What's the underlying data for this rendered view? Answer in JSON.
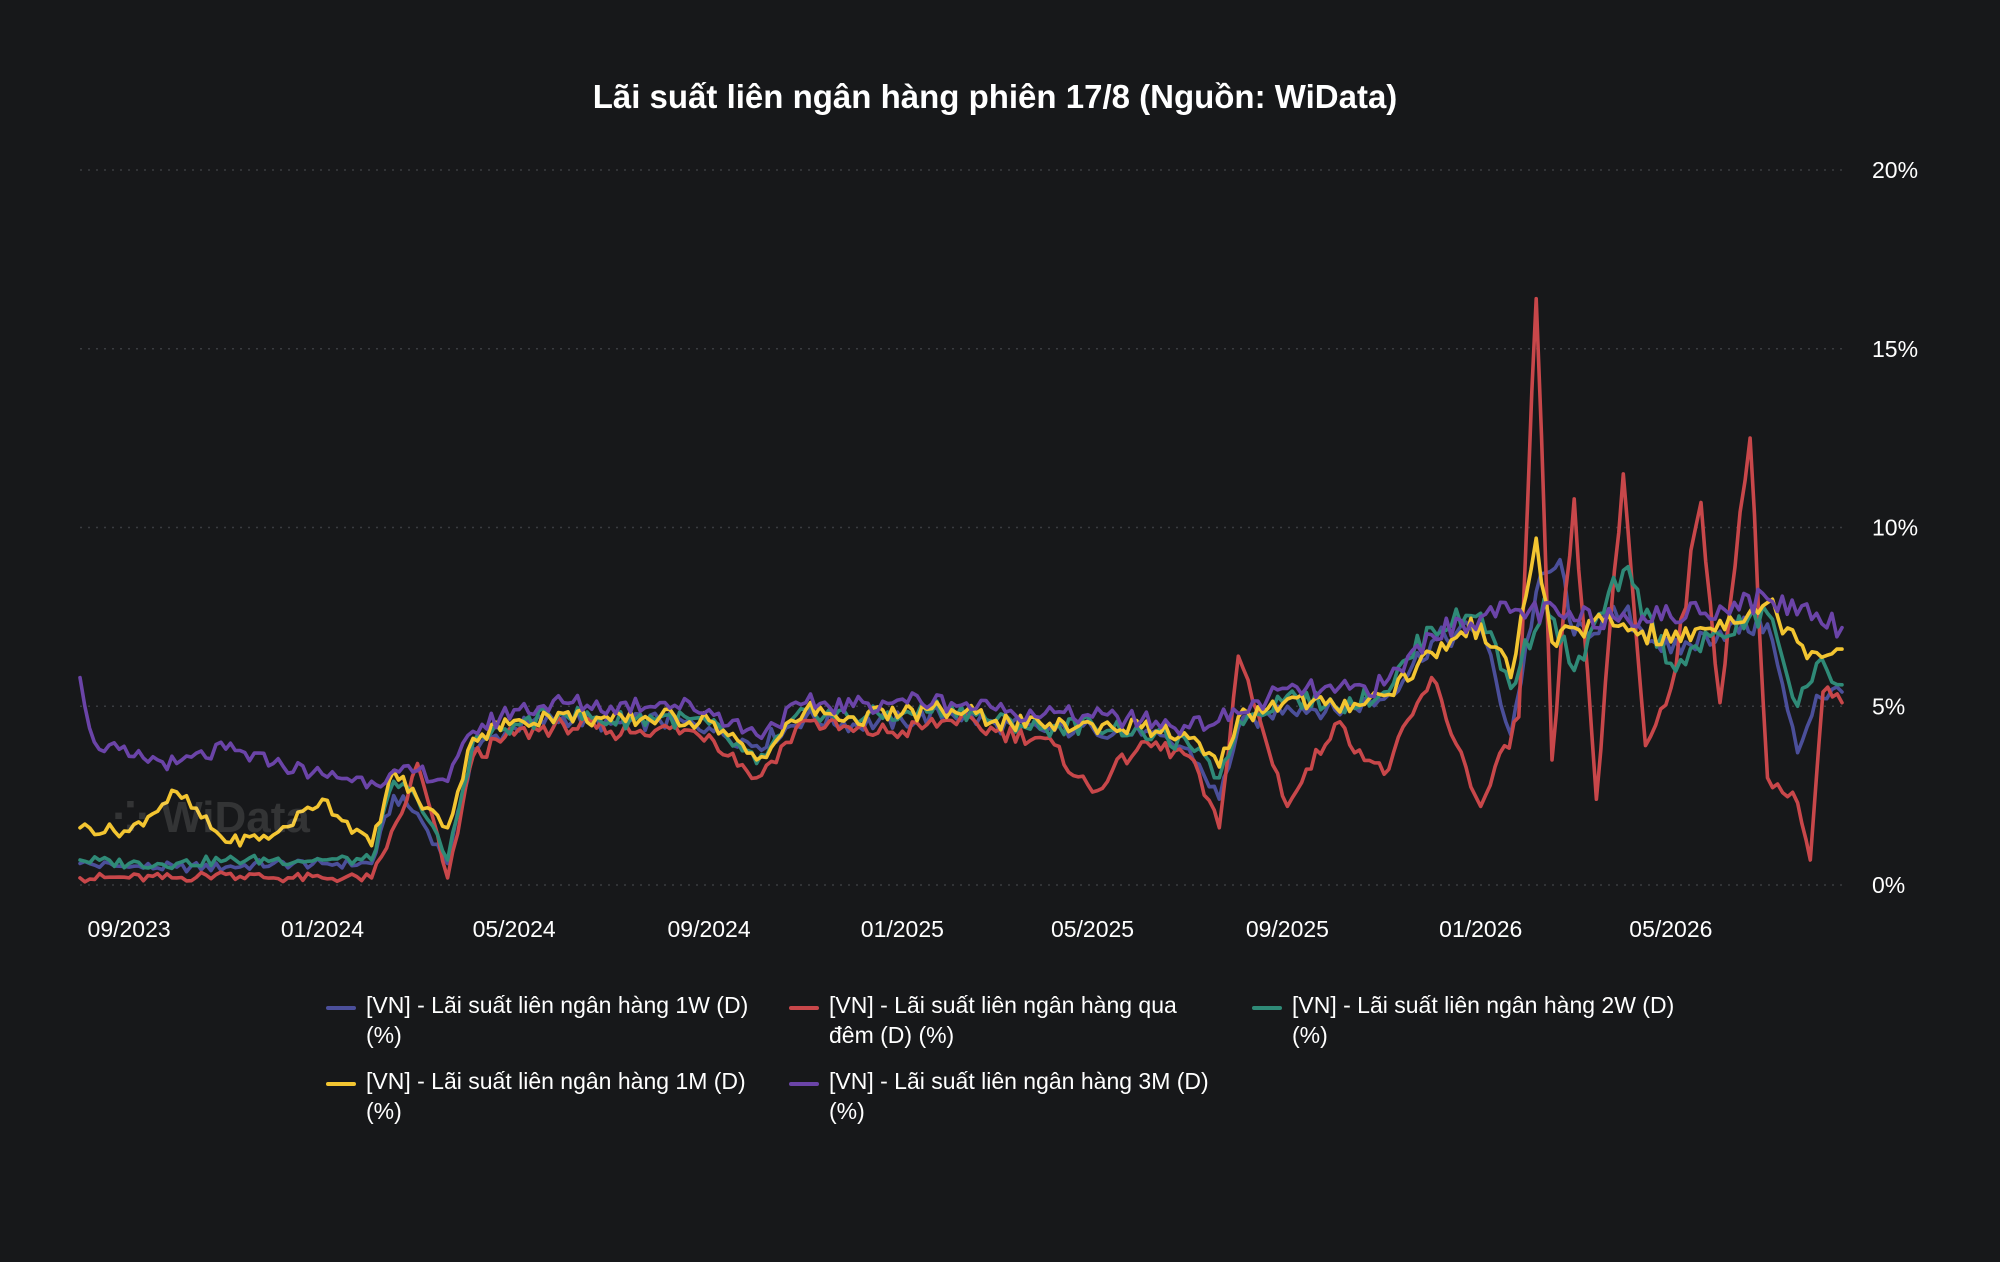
{
  "chart_data": {
    "type": "line",
    "title": "Lãi suất liên ngân hàng phiên 17/8 (Nguồn: WiData)",
    "xlabel": "",
    "ylabel": "",
    "ylim": [
      0,
      20
    ],
    "y_ticks": [
      "0%",
      "5%",
      "10%",
      "15%",
      "20%"
    ],
    "x_ticks": [
      "09/2023",
      "01/2024",
      "05/2024",
      "09/2024",
      "01/2025",
      "05/2025",
      "09/2025",
      "01/2026",
      "05/2026"
    ],
    "x_range": [
      "2023-08-01",
      "2026-08-17"
    ],
    "grid": true,
    "legend_position": "bottom",
    "series": [
      {
        "name": "[VN] - Lãi suất liên ngân hàng 1W (D) (%)",
        "color": "#4b4f9a",
        "points": [
          [
            "2023-08-01",
            0.6
          ],
          [
            "2023-09-01",
            0.5
          ],
          [
            "2023-10-01",
            0.5
          ],
          [
            "2023-11-01",
            0.5
          ],
          [
            "2023-12-01",
            0.6
          ],
          [
            "2024-01-01",
            0.6
          ],
          [
            "2024-02-01",
            0.6
          ],
          [
            "2024-02-15",
            2.5
          ],
          [
            "2024-03-01",
            2.0
          ],
          [
            "2024-03-20",
            0.6
          ],
          [
            "2024-04-05",
            3.8
          ],
          [
            "2024-05-01",
            4.4
          ],
          [
            "2024-06-01",
            4.7
          ],
          [
            "2024-07-01",
            4.5
          ],
          [
            "2024-08-01",
            4.6
          ],
          [
            "2024-09-01",
            4.4
          ],
          [
            "2024-10-01",
            3.9
          ],
          [
            "2024-11-01",
            4.7
          ],
          [
            "2024-12-01",
            4.5
          ],
          [
            "2025-01-01",
            4.6
          ],
          [
            "2025-02-01",
            4.8
          ],
          [
            "2025-03-01",
            4.5
          ],
          [
            "2025-04-01",
            4.3
          ],
          [
            "2025-05-01",
            4.4
          ],
          [
            "2025-06-01",
            4.2
          ],
          [
            "2025-07-01",
            3.8
          ],
          [
            "2025-07-20",
            2.4
          ],
          [
            "2025-08-01",
            4.4
          ],
          [
            "2025-09-01",
            5.0
          ],
          [
            "2025-10-01",
            4.9
          ],
          [
            "2025-11-01",
            5.2
          ],
          [
            "2025-12-01",
            6.8
          ],
          [
            "2026-01-01",
            7.2
          ],
          [
            "2026-01-20",
            4.2
          ],
          [
            "2026-02-05",
            8.2
          ],
          [
            "2026-02-20",
            9.1
          ],
          [
            "2026-03-01",
            7.0
          ],
          [
            "2026-04-01",
            7.6
          ],
          [
            "2026-05-01",
            6.5
          ],
          [
            "2026-06-01",
            7.1
          ],
          [
            "2026-07-01",
            7.3
          ],
          [
            "2026-07-20",
            3.7
          ],
          [
            "2026-08-01",
            5.3
          ],
          [
            "2026-08-17",
            5.4
          ]
        ]
      },
      {
        "name": "[VN] - Lãi suất liên ngân hàng qua đêm (D) (%)",
        "color": "#c8474a",
        "points": [
          [
            "2023-08-01",
            0.2
          ],
          [
            "2023-09-01",
            0.2
          ],
          [
            "2023-10-01",
            0.2
          ],
          [
            "2023-11-01",
            0.3
          ],
          [
            "2023-12-01",
            0.2
          ],
          [
            "2024-01-01",
            0.2
          ],
          [
            "2024-02-01",
            0.2
          ],
          [
            "2024-02-20",
            2.0
          ],
          [
            "2024-03-01",
            3.4
          ],
          [
            "2024-03-20",
            0.2
          ],
          [
            "2024-04-05",
            3.6
          ],
          [
            "2024-05-01",
            4.2
          ],
          [
            "2024-06-01",
            4.5
          ],
          [
            "2024-07-01",
            4.3
          ],
          [
            "2024-08-01",
            4.4
          ],
          [
            "2024-09-01",
            4.2
          ],
          [
            "2024-10-01",
            3.0
          ],
          [
            "2024-11-01",
            4.6
          ],
          [
            "2024-12-01",
            4.3
          ],
          [
            "2025-01-01",
            4.3
          ],
          [
            "2025-02-01",
            4.6
          ],
          [
            "2025-03-01",
            4.3
          ],
          [
            "2025-04-01",
            4.1
          ],
          [
            "2025-05-01",
            2.6
          ],
          [
            "2025-06-01",
            4.0
          ],
          [
            "2025-07-01",
            3.6
          ],
          [
            "2025-07-20",
            1.6
          ],
          [
            "2025-08-01",
            6.4
          ],
          [
            "2025-09-01",
            2.2
          ],
          [
            "2025-10-01",
            4.5
          ],
          [
            "2025-11-01",
            3.1
          ],
          [
            "2025-12-01",
            5.8
          ],
          [
            "2026-01-01",
            2.2
          ],
          [
            "2026-01-25",
            4.7
          ],
          [
            "2026-02-05",
            16.4
          ],
          [
            "2026-02-15",
            3.5
          ],
          [
            "2026-03-01",
            10.8
          ],
          [
            "2026-03-15",
            2.4
          ],
          [
            "2026-04-01",
            11.5
          ],
          [
            "2026-04-15",
            3.9
          ],
          [
            "2026-05-01",
            5.5
          ],
          [
            "2026-05-20",
            10.7
          ],
          [
            "2026-06-01",
            5.1
          ],
          [
            "2026-06-20",
            12.5
          ],
          [
            "2026-07-01",
            3.0
          ],
          [
            "2026-07-20",
            2.3
          ],
          [
            "2026-07-28",
            0.7
          ],
          [
            "2026-08-05",
            5.4
          ],
          [
            "2026-08-17",
            5.1
          ]
        ]
      },
      {
        "name": "[VN] - Lãi suất liên ngân hàng 2W (D) (%)",
        "color": "#2f8a77",
        "points": [
          [
            "2023-08-01",
            0.7
          ],
          [
            "2023-09-01",
            0.6
          ],
          [
            "2023-10-01",
            0.6
          ],
          [
            "2023-11-01",
            0.7
          ],
          [
            "2023-12-01",
            0.7
          ],
          [
            "2024-01-01",
            0.7
          ],
          [
            "2024-02-01",
            0.7
          ],
          [
            "2024-02-15",
            2.9
          ],
          [
            "2024-03-01",
            2.4
          ],
          [
            "2024-03-20",
            0.7
          ],
          [
            "2024-04-05",
            4.0
          ],
          [
            "2024-05-01",
            4.5
          ],
          [
            "2024-06-01",
            4.8
          ],
          [
            "2024-07-01",
            4.6
          ],
          [
            "2024-08-01",
            4.7
          ],
          [
            "2024-09-01",
            4.5
          ],
          [
            "2024-10-01",
            3.4
          ],
          [
            "2024-11-01",
            4.9
          ],
          [
            "2024-12-01",
            4.7
          ],
          [
            "2025-01-01",
            4.8
          ],
          [
            "2025-02-01",
            5.0
          ],
          [
            "2025-03-01",
            4.6
          ],
          [
            "2025-04-01",
            4.4
          ],
          [
            "2025-05-01",
            4.5
          ],
          [
            "2025-06-01",
            4.3
          ],
          [
            "2025-07-01",
            3.9
          ],
          [
            "2025-07-20",
            3.0
          ],
          [
            "2025-08-01",
            4.6
          ],
          [
            "2025-09-01",
            5.3
          ],
          [
            "2025-10-01",
            5.0
          ],
          [
            "2025-11-01",
            5.4
          ],
          [
            "2025-12-01",
            7.2
          ],
          [
            "2026-01-01",
            7.6
          ],
          [
            "2026-01-20",
            5.5
          ],
          [
            "2026-02-10",
            8.0
          ],
          [
            "2026-03-01",
            6.0
          ],
          [
            "2026-04-01",
            8.8
          ],
          [
            "2026-05-01",
            6.2
          ],
          [
            "2026-06-01",
            7.0
          ],
          [
            "2026-07-01",
            7.6
          ],
          [
            "2026-07-20",
            5.0
          ],
          [
            "2026-08-01",
            6.2
          ],
          [
            "2026-08-17",
            5.6
          ]
        ]
      },
      {
        "name": "[VN] - Lãi suất liên ngân hàng 1M (D) (%)",
        "color": "#f3c531",
        "points": [
          [
            "2023-08-01",
            1.6
          ],
          [
            "2023-09-01",
            1.5
          ],
          [
            "2023-10-01",
            2.6
          ],
          [
            "2023-11-01",
            1.2
          ],
          [
            "2023-12-01",
            1.4
          ],
          [
            "2024-01-01",
            2.4
          ],
          [
            "2024-02-01",
            1.1
          ],
          [
            "2024-02-15",
            3.2
          ],
          [
            "2024-03-01",
            2.4
          ],
          [
            "2024-03-20",
            1.6
          ],
          [
            "2024-04-05",
            4.1
          ],
          [
            "2024-05-01",
            4.6
          ],
          [
            "2024-06-01",
            4.8
          ],
          [
            "2024-07-01",
            4.6
          ],
          [
            "2024-08-01",
            4.7
          ],
          [
            "2024-09-01",
            4.6
          ],
          [
            "2024-10-01",
            3.5
          ],
          [
            "2024-11-01",
            4.9
          ],
          [
            "2024-12-01",
            4.7
          ],
          [
            "2025-01-01",
            4.8
          ],
          [
            "2025-02-01",
            4.9
          ],
          [
            "2025-03-01",
            4.6
          ],
          [
            "2025-04-01",
            4.4
          ],
          [
            "2025-05-01",
            4.5
          ],
          [
            "2025-06-01",
            4.4
          ],
          [
            "2025-07-01",
            4.1
          ],
          [
            "2025-07-20",
            3.3
          ],
          [
            "2025-08-01",
            4.7
          ],
          [
            "2025-09-01",
            5.2
          ],
          [
            "2025-10-01",
            5.0
          ],
          [
            "2025-11-01",
            5.3
          ],
          [
            "2025-12-01",
            6.5
          ],
          [
            "2026-01-01",
            7.3
          ],
          [
            "2026-01-20",
            5.8
          ],
          [
            "2026-02-05",
            9.7
          ],
          [
            "2026-02-15",
            6.8
          ],
          [
            "2026-03-01",
            7.2
          ],
          [
            "2026-04-01",
            7.3
          ],
          [
            "2026-05-01",
            6.8
          ],
          [
            "2026-06-01",
            7.4
          ],
          [
            "2026-07-01",
            7.9
          ],
          [
            "2026-07-20",
            6.8
          ],
          [
            "2026-08-01",
            6.5
          ],
          [
            "2026-08-17",
            6.6
          ]
        ]
      },
      {
        "name": "[VN] - Lãi suất liên ngân hàng 3M (D) (%)",
        "color": "#6b44a8",
        "points": [
          [
            "2023-08-01",
            5.8
          ],
          [
            "2023-08-10",
            4.0
          ],
          [
            "2023-09-01",
            3.6
          ],
          [
            "2023-10-01",
            3.4
          ],
          [
            "2023-11-01",
            3.8
          ],
          [
            "2023-12-01",
            3.4
          ],
          [
            "2024-01-01",
            3.1
          ],
          [
            "2024-02-01",
            2.9
          ],
          [
            "2024-03-01",
            3.2
          ],
          [
            "2024-03-20",
            2.9
          ],
          [
            "2024-04-05",
            4.3
          ],
          [
            "2024-05-01",
            4.9
          ],
          [
            "2024-06-01",
            5.1
          ],
          [
            "2024-07-01",
            5.0
          ],
          [
            "2024-08-01",
            5.1
          ],
          [
            "2024-09-01",
            4.9
          ],
          [
            "2024-10-01",
            4.2
          ],
          [
            "2024-11-01",
            5.1
          ],
          [
            "2024-12-01",
            5.0
          ],
          [
            "2025-01-01",
            5.2
          ],
          [
            "2025-02-01",
            5.1
          ],
          [
            "2025-03-01",
            4.9
          ],
          [
            "2025-04-01",
            4.8
          ],
          [
            "2025-05-01",
            4.7
          ],
          [
            "2025-06-01",
            4.6
          ],
          [
            "2025-07-01",
            4.4
          ],
          [
            "2025-08-01",
            4.8
          ],
          [
            "2025-09-01",
            5.5
          ],
          [
            "2025-10-01",
            5.4
          ],
          [
            "2025-11-01",
            5.6
          ],
          [
            "2025-12-01",
            7.0
          ],
          [
            "2026-01-01",
            7.5
          ],
          [
            "2026-02-01",
            7.7
          ],
          [
            "2026-03-01",
            7.4
          ],
          [
            "2026-04-01",
            7.6
          ],
          [
            "2026-05-01",
            7.5
          ],
          [
            "2026-06-01",
            7.8
          ],
          [
            "2026-07-01",
            8.0
          ],
          [
            "2026-08-01",
            7.6
          ],
          [
            "2026-08-17",
            7.2
          ]
        ]
      }
    ]
  }
}
